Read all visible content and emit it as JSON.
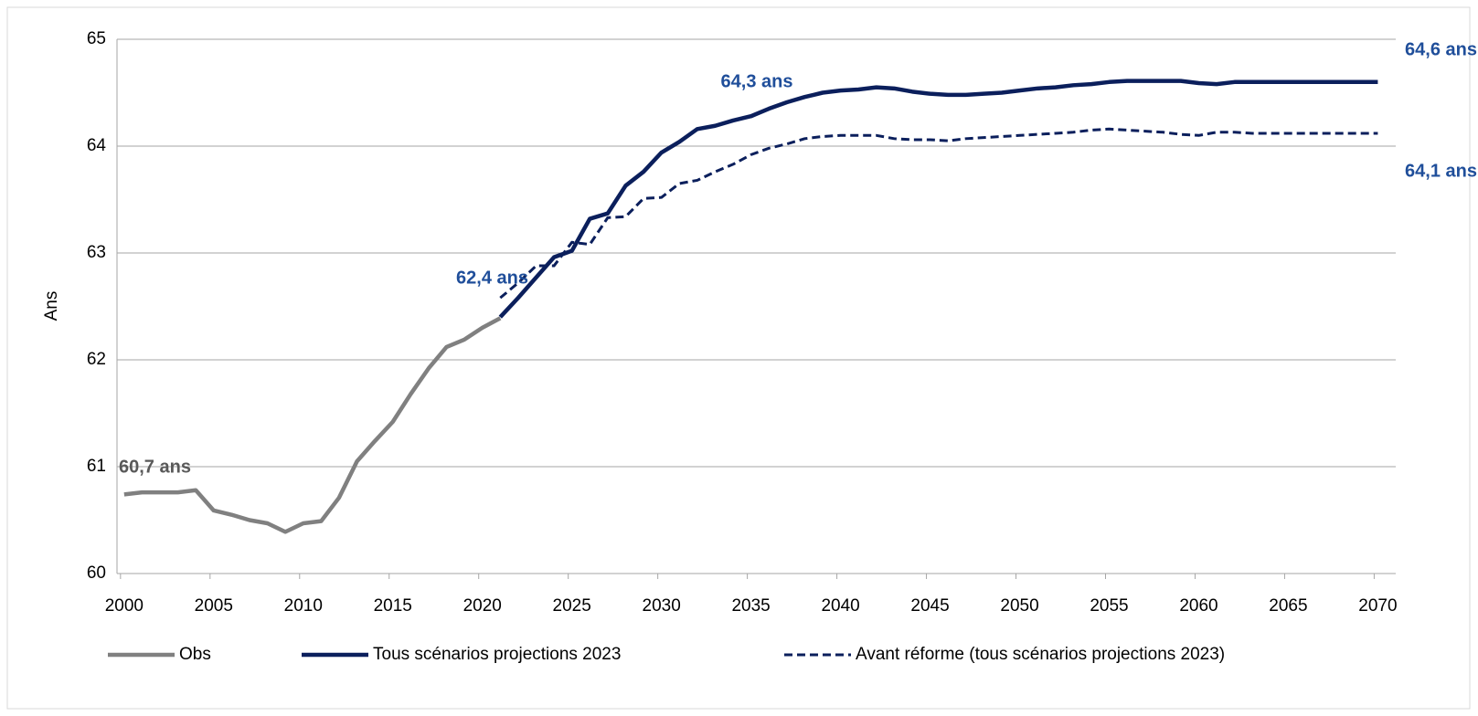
{
  "chart_data": {
    "type": "line",
    "y_label": "Ans",
    "x": [
      2000,
      2001,
      2002,
      2003,
      2004,
      2005,
      2006,
      2007,
      2008,
      2009,
      2010,
      2011,
      2012,
      2013,
      2014,
      2015,
      2016,
      2017,
      2018,
      2019,
      2020,
      2021,
      2022,
      2023,
      2024,
      2025,
      2026,
      2027,
      2028,
      2029,
      2030,
      2031,
      2032,
      2033,
      2034,
      2035,
      2036,
      2037,
      2038,
      2039,
      2040,
      2041,
      2042,
      2043,
      2044,
      2045,
      2046,
      2047,
      2048,
      2049,
      2050,
      2051,
      2052,
      2053,
      2054,
      2055,
      2056,
      2057,
      2058,
      2059,
      2060,
      2061,
      2062,
      2063,
      2064,
      2065,
      2066,
      2067,
      2068,
      2069,
      2070
    ],
    "series": [
      {
        "name": "Obs",
        "color": "#808080",
        "dash": false,
        "values": [
          60.74,
          60.76,
          60.76,
          60.76,
          60.78,
          60.59,
          60.55,
          60.5,
          60.47,
          60.39,
          60.47,
          60.49,
          60.71,
          61.05,
          61.24,
          61.42,
          61.68,
          61.92,
          62.12,
          62.19,
          62.3,
          62.39,
          null,
          null,
          null,
          null,
          null,
          null,
          null,
          null,
          null,
          null,
          null,
          null,
          null,
          null,
          null,
          null,
          null,
          null,
          null,
          null,
          null,
          null,
          null,
          null,
          null,
          null,
          null,
          null,
          null,
          null,
          null,
          null,
          null,
          null,
          null,
          null,
          null,
          null,
          null,
          null,
          null,
          null,
          null,
          null,
          null,
          null,
          null,
          null,
          null
        ]
      },
      {
        "name": "Tous scénarios projections 2023",
        "color": "#0b1f5c",
        "dash": false,
        "values": [
          null,
          null,
          null,
          null,
          null,
          null,
          null,
          null,
          null,
          null,
          null,
          null,
          null,
          null,
          null,
          null,
          null,
          null,
          null,
          null,
          null,
          62.4,
          62.58,
          62.77,
          62.96,
          63.02,
          63.32,
          63.37,
          63.63,
          63.76,
          63.94,
          64.04,
          64.16,
          64.19,
          64.24,
          64.28,
          64.35,
          64.41,
          64.46,
          64.5,
          64.52,
          64.53,
          64.55,
          64.54,
          64.51,
          64.49,
          64.48,
          64.48,
          64.49,
          64.5,
          64.52,
          64.54,
          64.55,
          64.57,
          64.58,
          64.6,
          64.61,
          64.61,
          64.61,
          64.61,
          64.59,
          64.58,
          64.6,
          64.6,
          64.6,
          64.6,
          64.6,
          64.6,
          64.6,
          64.6,
          64.6
        ]
      },
      {
        "name": "Avant réforme (tous scénarios projections 2023)",
        "color": "#0b1f5c",
        "dash": true,
        "values": [
          null,
          null,
          null,
          null,
          null,
          null,
          null,
          null,
          null,
          null,
          null,
          null,
          null,
          null,
          null,
          null,
          null,
          null,
          null,
          null,
          null,
          62.58,
          62.72,
          62.88,
          62.88,
          63.1,
          63.08,
          63.33,
          63.34,
          63.51,
          63.52,
          63.65,
          63.68,
          63.76,
          63.83,
          63.92,
          63.98,
          64.02,
          64.07,
          64.09,
          64.1,
          64.1,
          64.1,
          64.07,
          64.06,
          64.06,
          64.05,
          64.07,
          64.08,
          64.09,
          64.1,
          64.11,
          64.12,
          64.13,
          64.15,
          64.16,
          64.15,
          64.14,
          64.13,
          64.11,
          64.1,
          64.13,
          64.13,
          64.12,
          64.12,
          64.12,
          64.12,
          64.12,
          64.12,
          64.12,
          64.12
        ]
      }
    ],
    "annotations": [
      {
        "text": "60,7 ans",
        "color": "#595959"
      },
      {
        "text": "62,4 ans",
        "color": "#1f4e9a"
      },
      {
        "text": "64,3 ans",
        "color": "#1f4e9a"
      },
      {
        "text": "64,6 ans",
        "color": "#1f4e9a"
      },
      {
        "text": "64,1 ans",
        "color": "#1f4e9a"
      }
    ],
    "xlim": [
      1999.6,
      2071
    ],
    "xticks": [
      2000,
      2005,
      2010,
      2015,
      2020,
      2025,
      2030,
      2035,
      2040,
      2045,
      2050,
      2055,
      2060,
      2065,
      2070
    ],
    "ylim": [
      60,
      65
    ],
    "yticks": [
      60,
      61,
      62,
      63,
      64,
      65
    ],
    "grid": true,
    "legend": "bottom"
  }
}
